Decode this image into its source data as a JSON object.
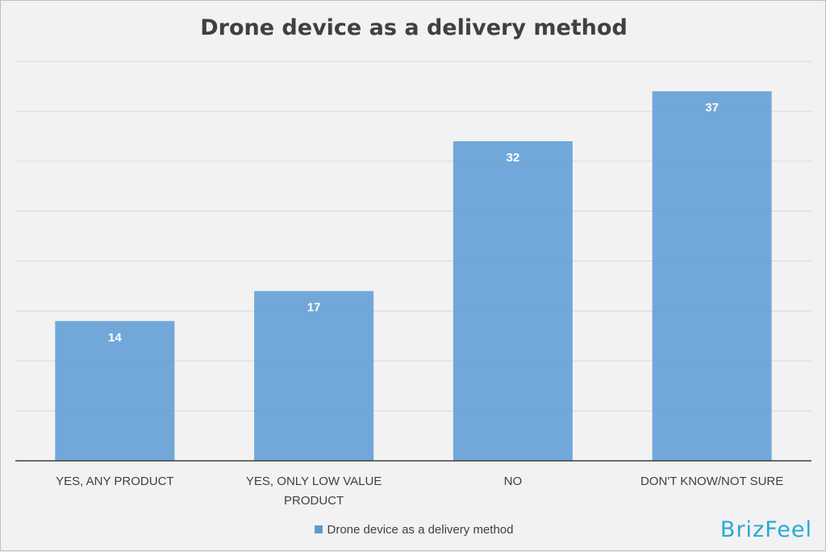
{
  "chart_data": {
    "type": "bar",
    "title": "Drone device as a delivery method",
    "categories": [
      "YES, ANY PRODUCT",
      "YES, ONLY LOW VALUE PRODUCT",
      "NO",
      "DON'T KNOW/NOT SURE"
    ],
    "series": [
      {
        "name": "Drone device as a delivery method",
        "values": [
          14,
          17,
          32,
          37
        ]
      }
    ],
    "data_labels": [
      "14",
      "17",
      "32",
      "37"
    ],
    "ylim": [
      0,
      40
    ],
    "grid": true,
    "legend_position": "bottom",
    "bar_color": "#5b9bd5",
    "xlabel": "",
    "ylabel": ""
  },
  "branding": {
    "logo_text": "BrizFeel",
    "logo_color": "#2aa8d8"
  }
}
